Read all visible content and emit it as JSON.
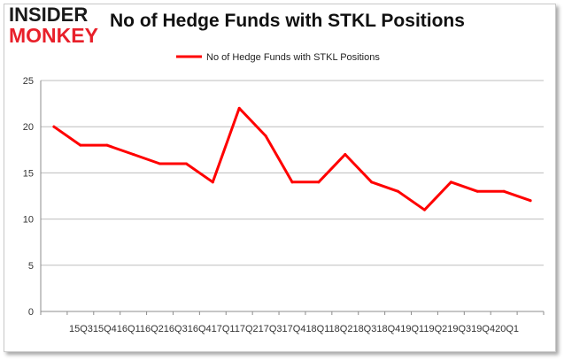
{
  "logo": {
    "line1": "INSIDER",
    "line2": "MONKEY"
  },
  "chart_data": {
    "type": "line",
    "title": "No of Hedge Funds with STKL Positions",
    "xlabel": "",
    "ylabel": "",
    "x": [
      "2015Q3",
      "2015Q4",
      "2016Q1",
      "2016Q2",
      "2016Q3",
      "2016Q4",
      "2017Q1",
      "2017Q2",
      "2017Q3",
      "2017Q4",
      "2018Q1",
      "2018Q2",
      "2018Q3",
      "2018Q4",
      "2019Q1",
      "2019Q2",
      "2019Q3",
      "2019Q4",
      "2020Q1"
    ],
    "x_tick_text": "15Q315Q416Q116Q216Q316Q417Q117Q217Q317Q418Q118Q218Q318Q419Q119Q219Q319Q420Q1",
    "series": [
      {
        "name": "No of Hedge Funds with STKL Positions",
        "values": [
          20,
          18,
          18,
          17,
          16,
          16,
          14,
          22,
          19,
          14,
          14,
          17,
          14,
          13,
          11,
          14,
          13,
          13,
          12
        ],
        "color": "#ff0000"
      }
    ],
    "ylim": [
      0,
      25
    ],
    "yticks": [
      0,
      5,
      10,
      15,
      20,
      25
    ],
    "grid": true,
    "legend": "top-center"
  }
}
